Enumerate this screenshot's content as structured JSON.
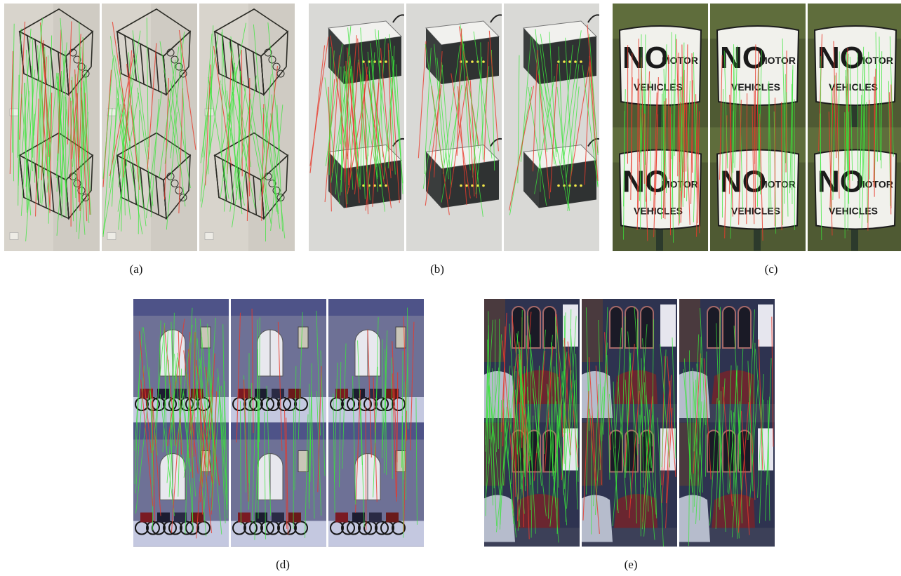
{
  "figure": {
    "captions": {
      "a": "(a)",
      "b": "(b)",
      "c": "(c)",
      "d": "(d)",
      "e": "(e)"
    },
    "sign": {
      "no": "NO",
      "motor": "MOTOR",
      "vehicles": "VEHICLES"
    },
    "colors": {
      "inlier_match": "#39e639",
      "outlier_match": "#e8392b"
    }
  }
}
